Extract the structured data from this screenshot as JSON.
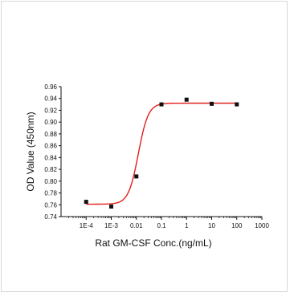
{
  "chart_data": {
    "type": "scatter",
    "title": "",
    "xlabel": "Rat GM-CSF Conc.(ng/mL)",
    "ylabel": "OD Value (450nm)",
    "x_scale": "log",
    "xlim": [
      1e-05,
      1000
    ],
    "ylim": [
      0.74,
      0.96
    ],
    "x_tick_values": [
      0.0001,
      0.001,
      0.01,
      0.1,
      1,
      10,
      100,
      1000
    ],
    "x_tick_labels": [
      "1E-4",
      "1E-3",
      "0.01",
      "0.1",
      "1",
      "10",
      "100",
      "1000"
    ],
    "y_tick_values": [
      0.74,
      0.76,
      0.78,
      0.8,
      0.82,
      0.84,
      0.86,
      0.88,
      0.9,
      0.92,
      0.94,
      0.96
    ],
    "y_tick_labels": [
      "0.74",
      "0.76",
      "0.78",
      "0.80",
      "0.82",
      "0.84",
      "0.86",
      "0.88",
      "0.90",
      "0.92",
      "0.94",
      "0.96"
    ],
    "grid": false,
    "series": [
      {
        "type": "scatter",
        "marker": "square",
        "color": "#111111",
        "x": [
          0.0001,
          0.001,
          0.01,
          0.1,
          1,
          10,
          100
        ],
        "y": [
          0.765,
          0.757,
          0.808,
          0.93,
          0.938,
          0.931,
          0.93
        ]
      },
      {
        "type": "line",
        "style": "fitted curve",
        "color": "#e0201b",
        "fit": {
          "model": "4PL",
          "bottom": 0.761,
          "top": 0.932,
          "ec50": 0.012,
          "hill": 2.2,
          "x_start": 0.0001,
          "x_end": 100
        }
      }
    ]
  }
}
